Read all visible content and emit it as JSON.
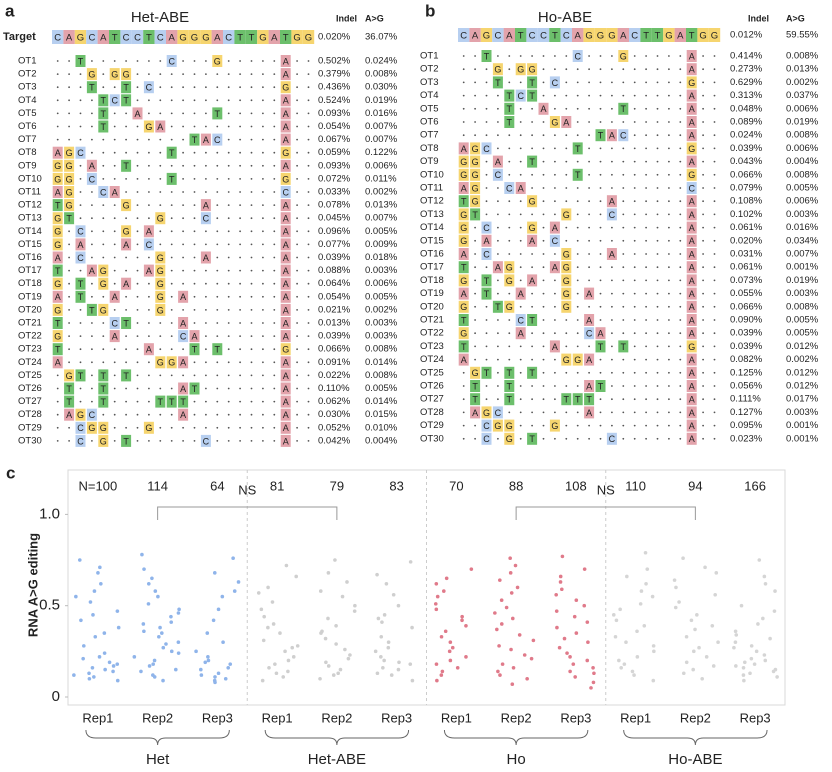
{
  "off_targets": {
    "names": [
      "OT1",
      "OT2",
      "OT3",
      "OT4",
      "OT5",
      "OT6",
      "OT7",
      "OT8",
      "OT9",
      "OT10",
      "OT11",
      "OT12",
      "OT13",
      "OT14",
      "OT15",
      "OT16",
      "OT17",
      "OT18",
      "OT19",
      "OT20",
      "OT21",
      "OT22",
      "OT23",
      "OT24",
      "OT25",
      "OT26",
      "OT27",
      "OT28",
      "OT29",
      "OT30"
    ],
    "sequences": [
      "..T.......C...G.....A..",
      "...G.GG.............A..",
      "...T..T.C...........G..",
      "....TCT.............A..",
      "....T..A......T.....A..",
      "....T...GA..........A..",
      "............TAC.....A..",
      "AGC.......T.........G..",
      "GG.A..T.............A..",
      "GG.C......T.........G..",
      "AG..CA..............C..",
      "TG....G......A......A..",
      "GT.......G...C......A..",
      "G.C...G.A...........A..",
      "G.A...A.C...........A..",
      "A.C......G...A......A..",
      "T..AG...AG..........A..",
      "G.T.G.A..G..........A..",
      "A.T..A...G.A........A..",
      "G..TG....G..........A..",
      "T....CT....A........A..",
      "G....A.....CA.......A..",
      "T.......A...T.T.....G..",
      "A........GGA........A..",
      ".GT.T.T.............A..",
      ".T..T......AT.......A..",
      ".T..T....TTT........A..",
      ".AGC.......A........A..",
      "..CGG...G...........A..",
      "..C.G.T......C......A.."
    ]
  },
  "panel_a": {
    "label": "a",
    "title": "Het-ABE",
    "col_headers": [
      "Indel",
      "A>G"
    ],
    "target_label": "Target",
    "target_sequence": "CAGCATCCTCAGGGACTTGATGG",
    "target_indel": "0.020%",
    "target_ag": "36.07%",
    "indel": [
      "0.502%",
      "0.379%",
      "0.436%",
      "0.524%",
      "0.093%",
      "0.054%",
      "0.067%",
      "0.059%",
      "0.093%",
      "0.072%",
      "0.033%",
      "0.078%",
      "0.045%",
      "0.096%",
      "0.077%",
      "0.039%",
      "0.088%",
      "0.064%",
      "0.054%",
      "0.021%",
      "0.013%",
      "0.039%",
      "0.066%",
      "0.091%",
      "0.022%",
      "0.110%",
      "0.062%",
      "0.030%",
      "0.052%",
      "0.042%"
    ],
    "ag": [
      "0.024%",
      "0.008%",
      "0.030%",
      "0.019%",
      "0.016%",
      "0.007%",
      "0.007%",
      "0.122%",
      "0.006%",
      "0.011%",
      "0.002%",
      "0.013%",
      "0.007%",
      "0.005%",
      "0.009%",
      "0.018%",
      "0.003%",
      "0.006%",
      "0.005%",
      "0.002%",
      "0.003%",
      "0.003%",
      "0.008%",
      "0.014%",
      "0.008%",
      "0.005%",
      "0.014%",
      "0.015%",
      "0.010%",
      "0.004%"
    ]
  },
  "panel_b": {
    "label": "b",
    "title": "Ho-ABE",
    "col_headers": [
      "Indel",
      "A>G"
    ],
    "target_sequence": "CAGCATCCTCAGGGACTTGATGG",
    "target_indel": "0.012%",
    "target_ag": "59.55%",
    "indel": [
      "0.414%",
      "0.273%",
      "0.629%",
      "0.313%",
      "0.048%",
      "0.089%",
      "0.024%",
      "0.039%",
      "0.043%",
      "0.066%",
      "0.079%",
      "0.108%",
      "0.102%",
      "0.061%",
      "0.020%",
      "0.031%",
      "0.061%",
      "0.073%",
      "0.055%",
      "0.066%",
      "0.090%",
      "0.039%",
      "0.039%",
      "0.082%",
      "0.125%",
      "0.056%",
      "0.111%",
      "0.127%",
      "0.095%",
      "0.023%"
    ],
    "ag": [
      "0.008%",
      "0.013%",
      "0.002%",
      "0.037%",
      "0.006%",
      "0.019%",
      "0.008%",
      "0.006%",
      "0.004%",
      "0.008%",
      "0.005%",
      "0.006%",
      "0.003%",
      "0.016%",
      "0.034%",
      "0.007%",
      "0.001%",
      "0.019%",
      "0.003%",
      "0.008%",
      "0.005%",
      "0.005%",
      "0.012%",
      "0.002%",
      "0.012%",
      "0.012%",
      "0.017%",
      "0.003%",
      "0.001%",
      "0.001%"
    ]
  },
  "chart_data": {
    "type": "strip",
    "label": "c",
    "ylabel": "RNA A>G editing",
    "ylim": [
      0,
      1.15
    ],
    "yticks": [
      0,
      0.5,
      {
        "value": 1,
        "label": "1.0"
      }
    ],
    "reps": [
      "Rep1",
      "Rep2",
      "Rep3"
    ],
    "comparisons": [
      "NS",
      "NS"
    ],
    "groups": [
      {
        "name": "Het",
        "color": "#8fb4ea",
        "n_labels": [
          "N=100",
          "114",
          "64"
        ],
        "values": [
          [
            0.12,
            0.18,
            0.75,
            0.62,
            0.45,
            0.33,
            0.15,
            0.21,
            0.52,
            0.68,
            0.09,
            0.14,
            0.28,
            0.38,
            0.17,
            0.11,
            0.47,
            0.58,
            0.24,
            0.13,
            0.19,
            0.71,
            0.35,
            0.16,
            0.42,
            0.1,
            0.22,
            0.55
          ],
          [
            0.78,
            0.65,
            0.55,
            0.48,
            0.41,
            0.36,
            0.3,
            0.25,
            0.2,
            0.15,
            0.12,
            0.09,
            0.62,
            0.44,
            0.38,
            0.27,
            0.18,
            0.14,
            0.51,
            0.33,
            0.22,
            0.7,
            0.58,
            0.46,
            0.29,
            0.17,
            0.11,
            0.4,
            0.35,
            0.24
          ],
          [
            0.76,
            0.68,
            0.58,
            0.42,
            0.3,
            0.22,
            0.18,
            0.13,
            0.1,
            0.08,
            0.15,
            0.2,
            0.48,
            0.25,
            0.12,
            0.09,
            0.63,
            0.16,
            0.35,
            0.11,
            0.19,
            0.55
          ]
        ]
      },
      {
        "name": "Het-ABE",
        "color": "#cfcfcf",
        "n_labels": [
          "81",
          "79",
          "83"
        ],
        "values": [
          [
            0.72,
            0.6,
            0.52,
            0.44,
            0.35,
            0.28,
            0.22,
            0.18,
            0.14,
            0.11,
            0.66,
            0.4,
            0.31,
            0.25,
            0.2,
            0.16,
            0.13,
            0.09,
            0.48,
            0.38,
            0.57,
            0.27
          ],
          [
            0.75,
            0.63,
            0.55,
            0.47,
            0.39,
            0.32,
            0.26,
            0.21,
            0.17,
            0.13,
            0.1,
            0.58,
            0.43,
            0.35,
            0.23,
            0.15,
            0.12,
            0.5,
            0.29,
            0.19,
            0.68,
            0.36
          ],
          [
            0.74,
            0.62,
            0.5,
            0.41,
            0.33,
            0.27,
            0.22,
            0.18,
            0.15,
            0.12,
            0.09,
            0.56,
            0.45,
            0.3,
            0.2,
            0.16,
            0.13,
            0.38,
            0.25,
            0.67,
            0.43,
            0.19
          ]
        ]
      },
      {
        "name": "Ho",
        "color": "#e07a8a",
        "n_labels": [
          "70",
          "88",
          "108"
        ],
        "values": [
          [
            0.7,
            0.62,
            0.55,
            0.48,
            0.42,
            0.36,
            0.3,
            0.25,
            0.2,
            0.16,
            0.12,
            0.09,
            0.58,
            0.44,
            0.33,
            0.22,
            0.14,
            0.51,
            0.39,
            0.27,
            0.18,
            0.65
          ],
          [
            0.76,
            0.68,
            0.6,
            0.53,
            0.46,
            0.4,
            0.34,
            0.28,
            0.23,
            0.18,
            0.14,
            0.1,
            0.07,
            0.64,
            0.49,
            0.37,
            0.26,
            0.16,
            0.57,
            0.43,
            0.31,
            0.21,
            0.12,
            0.72
          ],
          [
            0.77,
            0.7,
            0.63,
            0.56,
            0.5,
            0.44,
            0.38,
            0.32,
            0.27,
            0.22,
            0.18,
            0.14,
            0.11,
            0.08,
            0.05,
            0.66,
            0.53,
            0.41,
            0.3,
            0.2,
            0.13,
            0.59,
            0.47,
            0.35,
            0.24,
            0.16
          ]
        ]
      },
      {
        "name": "Ho-ABE",
        "color": "#d5d5d5",
        "n_labels": [
          "110",
          "94",
          "166"
        ],
        "values": [
          [
            0.79,
            0.7,
            0.62,
            0.55,
            0.48,
            0.42,
            0.36,
            0.3,
            0.25,
            0.2,
            0.16,
            0.12,
            0.09,
            0.66,
            0.51,
            0.39,
            0.28,
            0.18,
            0.58,
            0.45,
            0.33,
            0.22,
            0.14
          ],
          [
            0.76,
            0.68,
            0.6,
            0.52,
            0.45,
            0.39,
            0.33,
            0.27,
            0.22,
            0.17,
            0.13,
            0.1,
            0.64,
            0.49,
            0.37,
            0.25,
            0.15,
            0.56,
            0.42,
            0.3,
            0.19,
            0.71
          ],
          [
            0.75,
            0.66,
            0.58,
            0.5,
            0.43,
            0.36,
            0.3,
            0.25,
            0.21,
            0.18,
            0.15,
            0.13,
            0.11,
            0.09,
            0.62,
            0.47,
            0.34,
            0.27,
            0.23,
            0.19,
            0.16,
            0.14,
            0.12,
            0.28,
            0.32,
            0.2,
            0.17,
            0.4
          ]
        ]
      }
    ]
  }
}
